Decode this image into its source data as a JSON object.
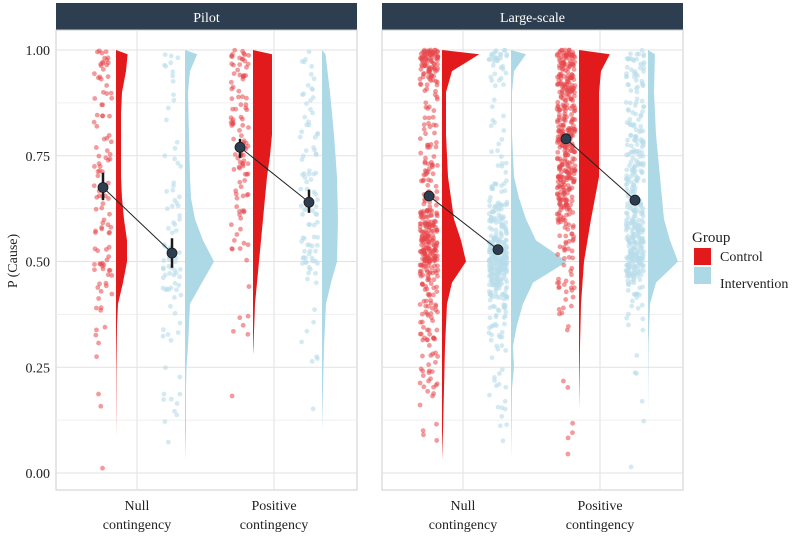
{
  "chart_data": {
    "type": "raincloud",
    "ylabel": "P (Cause)",
    "ylim": [
      -0.05,
      1.1
    ],
    "yticks": [
      "0.00",
      "0.25",
      "0.50",
      "0.75",
      "1.00"
    ],
    "ytick_values": [
      0,
      0.25,
      0.5,
      0.75,
      1.0
    ],
    "grid": true,
    "categories": [
      "Null\ncontingency",
      "Positive\ncontingency"
    ],
    "category_lines": [
      [
        "Null",
        "contingency"
      ],
      [
        "Positive",
        "contingency"
      ]
    ],
    "legend": {
      "title": "Group",
      "placement": "right",
      "entries": [
        {
          "name": "Control",
          "color": "#e31a1c"
        },
        {
          "name": "Intervention",
          "color": "#add8e6"
        }
      ]
    },
    "colors": {
      "strip": "#2c3e50",
      "mean": "#2c3e50",
      "panel_border": "#c8ccd2",
      "grid": "#e6e6e6"
    },
    "panels": [
      {
        "title": "Pilot",
        "groups": [
          {
            "category": 0,
            "group": "Control",
            "mean": 0.675,
            "ci": [
              0.645,
              0.71
            ],
            "points": 110,
            "density": [
              [
                0.08,
                0
              ],
              [
                0.15,
                0.2
              ],
              [
                0.25,
                0.4
              ],
              [
                0.35,
                1
              ],
              [
                0.4,
                2
              ],
              [
                0.45,
                7
              ],
              [
                0.5,
                11
              ],
              [
                0.55,
                11
              ],
              [
                0.6,
                8
              ],
              [
                0.65,
                6
              ],
              [
                0.7,
                5
              ],
              [
                0.8,
                5
              ],
              [
                0.85,
                5
              ],
              [
                0.9,
                6
              ],
              [
                0.95,
                10
              ],
              [
                1.0,
                12
              ]
            ]
          },
          {
            "category": 0,
            "group": "Intervention",
            "mean": 0.52,
            "ci": [
              0.485,
              0.555
            ],
            "points": 90,
            "density": [
              [
                0.03,
                0
              ],
              [
                0.1,
                1
              ],
              [
                0.2,
                1
              ],
              [
                0.25,
                1.5
              ],
              [
                0.3,
                3
              ],
              [
                0.35,
                4
              ],
              [
                0.4,
                5
              ],
              [
                0.45,
                17
              ],
              [
                0.5,
                29
              ],
              [
                0.55,
                18
              ],
              [
                0.6,
                10
              ],
              [
                0.65,
                6
              ],
              [
                0.7,
                5
              ],
              [
                0.8,
                4
              ],
              [
                0.9,
                3
              ],
              [
                0.95,
                5
              ],
              [
                1.0,
                14
              ]
            ]
          },
          {
            "category": 1,
            "group": "Control",
            "mean": 0.77,
            "ci": [
              0.745,
              0.79
            ],
            "points": 110,
            "density": [
              [
                0.28,
                0
              ],
              [
                0.3,
                0.5
              ],
              [
                0.4,
                2
              ],
              [
                0.5,
                6
              ],
              [
                0.6,
                10
              ],
              [
                0.7,
                14
              ],
              [
                0.75,
                17
              ],
              [
                0.8,
                19
              ],
              [
                0.9,
                19
              ],
              [
                1.0,
                19
              ]
            ]
          },
          {
            "category": 1,
            "group": "Intervention",
            "mean": 0.64,
            "ci": [
              0.615,
              0.67
            ],
            "points": 100,
            "density": [
              [
                0.1,
                0
              ],
              [
                0.2,
                1
              ],
              [
                0.3,
                2
              ],
              [
                0.4,
                4
              ],
              [
                0.45,
                9
              ],
              [
                0.5,
                15
              ],
              [
                0.6,
                16
              ],
              [
                0.7,
                15
              ],
              [
                0.8,
                12
              ],
              [
                0.9,
                8
              ],
              [
                1.0,
                3
              ]
            ]
          }
        ]
      },
      {
        "title": "Large-scale",
        "groups": [
          {
            "category": 0,
            "group": "Control",
            "mean": 0.655,
            "ci": [
              0.645,
              0.665
            ],
            "points": 420,
            "density": [
              [
                0.03,
                0
              ],
              [
                0.1,
                1
              ],
              [
                0.2,
                2
              ],
              [
                0.3,
                3
              ],
              [
                0.4,
                5
              ],
              [
                0.45,
                10
              ],
              [
                0.5,
                24
              ],
              [
                0.55,
                19
              ],
              [
                0.6,
                12
              ],
              [
                0.7,
                6
              ],
              [
                0.8,
                4
              ],
              [
                0.9,
                4
              ],
              [
                0.95,
                10
              ],
              [
                1.0,
                44
              ]
            ]
          },
          {
            "category": 0,
            "group": "Intervention",
            "mean": 0.528,
            "ci": [
              0.52,
              0.536
            ],
            "points": 380,
            "density": [
              [
                0.03,
                0
              ],
              [
                0.1,
                0.5
              ],
              [
                0.2,
                1
              ],
              [
                0.25,
                3
              ],
              [
                0.3,
                2
              ],
              [
                0.35,
                6
              ],
              [
                0.4,
                12
              ],
              [
                0.45,
                22
              ],
              [
                0.5,
                56
              ],
              [
                0.55,
                25
              ],
              [
                0.6,
                15
              ],
              [
                0.65,
                8
              ],
              [
                0.7,
                3
              ],
              [
                0.8,
                1
              ],
              [
                0.9,
                1
              ],
              [
                0.95,
                3
              ],
              [
                1.0,
                18
              ]
            ]
          },
          {
            "category": 1,
            "group": "Control",
            "mean": 0.79,
            "ci": [
              0.782,
              0.798
            ],
            "points": 420,
            "density": [
              [
                0.15,
                0
              ],
              [
                0.3,
                1
              ],
              [
                0.4,
                2
              ],
              [
                0.5,
                5
              ],
              [
                0.6,
                12
              ],
              [
                0.7,
                20
              ],
              [
                0.8,
                20
              ],
              [
                0.9,
                20
              ],
              [
                0.95,
                22
              ],
              [
                1.0,
                33
              ]
            ]
          },
          {
            "category": 1,
            "group": "Intervention",
            "mean": 0.645,
            "ci": [
              0.637,
              0.653
            ],
            "points": 380,
            "density": [
              [
                0.13,
                0
              ],
              [
                0.3,
                0.5
              ],
              [
                0.4,
                2
              ],
              [
                0.45,
                8
              ],
              [
                0.5,
                30
              ],
              [
                0.55,
                22
              ],
              [
                0.6,
                16
              ],
              [
                0.7,
                12
              ],
              [
                0.8,
                8
              ],
              [
                0.9,
                6
              ],
              [
                1.0,
                7
              ]
            ]
          }
        ]
      }
    ]
  }
}
